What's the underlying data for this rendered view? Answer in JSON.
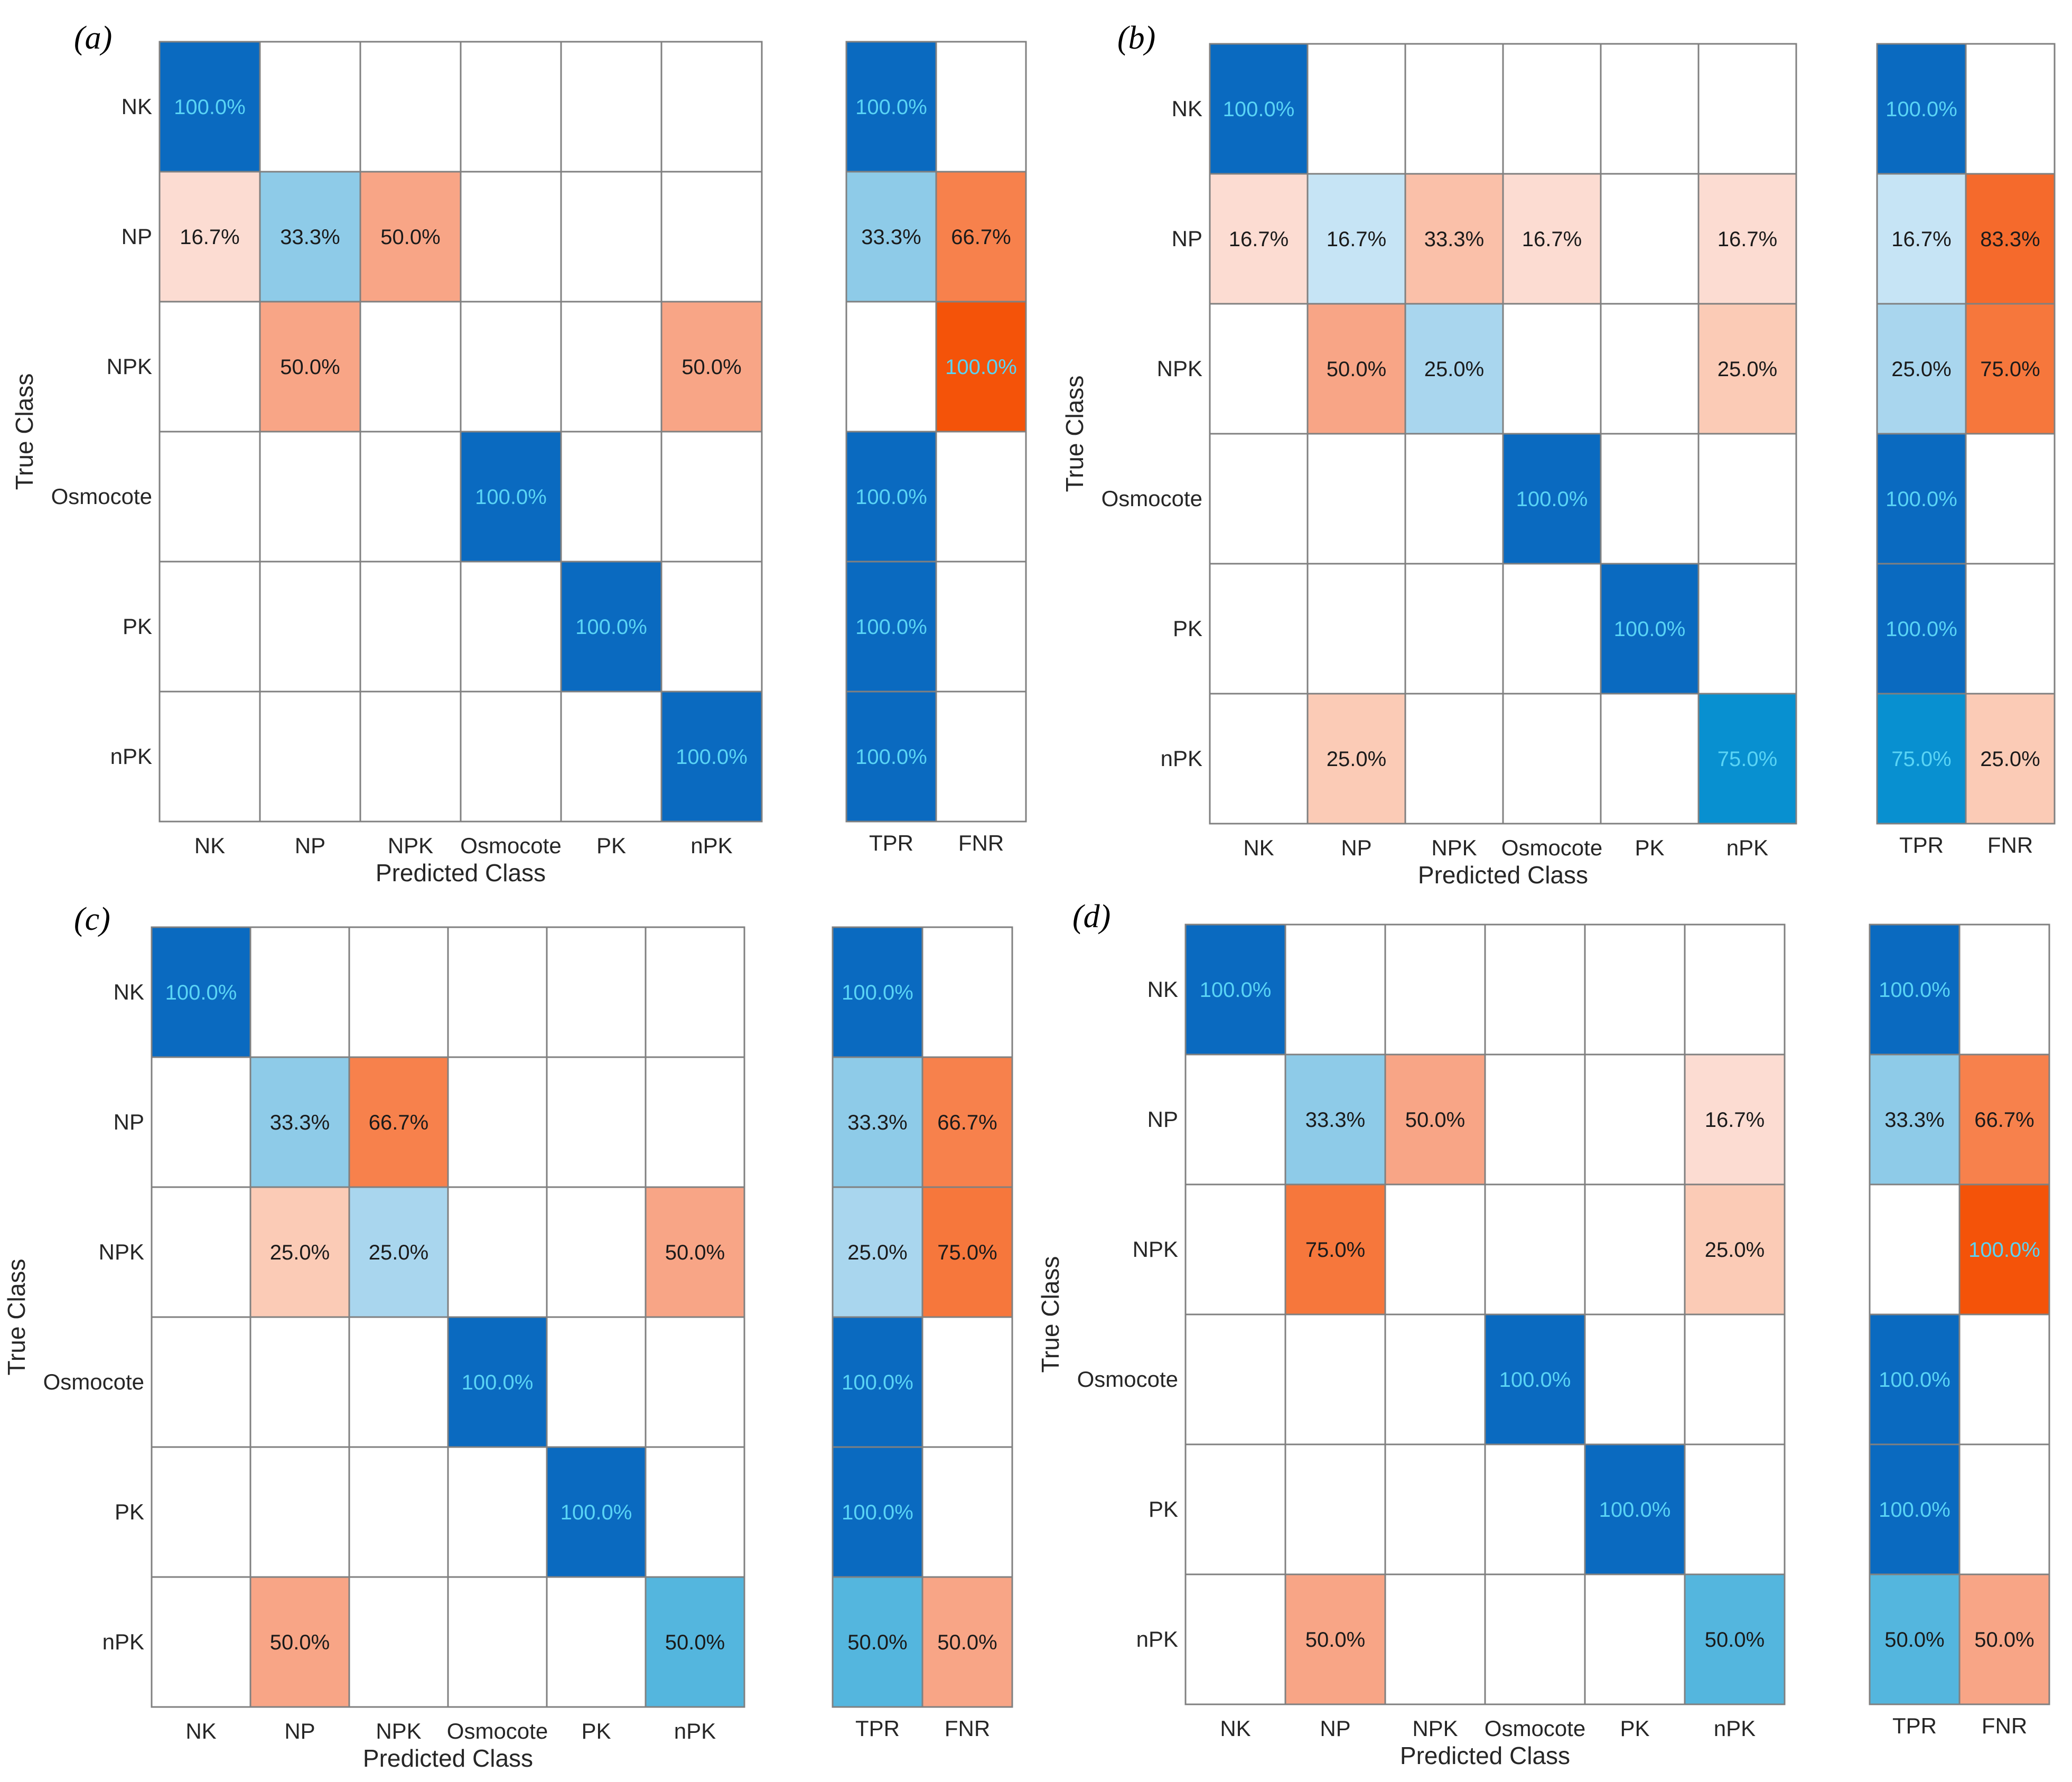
{
  "figure": {
    "panels_label_note": "Four confusion matrices with TPR/FNR summaries"
  },
  "chart_data": [
    {
      "type": "heatmap",
      "panel": "(a)",
      "ylabel": "True Class",
      "xlabel": "Predicted Class",
      "classes": [
        "NK",
        "NP",
        "NPK",
        "Osmocote",
        "PK",
        "nPK"
      ],
      "matrix": [
        [
          100.0,
          null,
          null,
          null,
          null,
          null
        ],
        [
          16.7,
          33.3,
          50.0,
          null,
          null,
          null
        ],
        [
          null,
          50.0,
          null,
          null,
          null,
          50.0
        ],
        [
          null,
          null,
          null,
          100.0,
          null,
          null
        ],
        [
          null,
          null,
          null,
          null,
          100.0,
          null
        ],
        [
          null,
          null,
          null,
          null,
          null,
          100.0
        ]
      ],
      "summary_labels": [
        "TPR",
        "FNR"
      ],
      "summary": [
        [
          100.0,
          null
        ],
        [
          33.3,
          66.7
        ],
        [
          null,
          100.0
        ],
        [
          100.0,
          null
        ],
        [
          100.0,
          null
        ],
        [
          100.0,
          null
        ]
      ]
    },
    {
      "type": "heatmap",
      "panel": "(b)",
      "ylabel": "True Class",
      "xlabel": "Predicted Class",
      "classes": [
        "NK",
        "NP",
        "NPK",
        "Osmocote",
        "PK",
        "nPK"
      ],
      "matrix": [
        [
          100.0,
          null,
          null,
          null,
          null,
          null
        ],
        [
          16.7,
          16.7,
          33.3,
          16.7,
          null,
          16.7
        ],
        [
          null,
          50.0,
          25.0,
          null,
          null,
          25.0
        ],
        [
          null,
          null,
          null,
          100.0,
          null,
          null
        ],
        [
          null,
          null,
          null,
          null,
          100.0,
          null
        ],
        [
          null,
          25.0,
          null,
          null,
          null,
          75.0
        ]
      ],
      "summary_labels": [
        "TPR",
        "FNR"
      ],
      "summary": [
        [
          100.0,
          null
        ],
        [
          16.7,
          83.3
        ],
        [
          25.0,
          75.0
        ],
        [
          100.0,
          null
        ],
        [
          100.0,
          null
        ],
        [
          75.0,
          25.0
        ]
      ]
    },
    {
      "type": "heatmap",
      "panel": "(c)",
      "ylabel": "True Class",
      "xlabel": "Predicted Class",
      "classes": [
        "NK",
        "NP",
        "NPK",
        "Osmocote",
        "PK",
        "nPK"
      ],
      "matrix": [
        [
          100.0,
          null,
          null,
          null,
          null,
          null
        ],
        [
          null,
          33.3,
          66.7,
          null,
          null,
          null
        ],
        [
          null,
          25.0,
          25.0,
          null,
          null,
          50.0
        ],
        [
          null,
          null,
          null,
          100.0,
          null,
          null
        ],
        [
          null,
          null,
          null,
          null,
          100.0,
          null
        ],
        [
          null,
          50.0,
          null,
          null,
          null,
          50.0
        ]
      ],
      "summary_labels": [
        "TPR",
        "FNR"
      ],
      "summary": [
        [
          100.0,
          null
        ],
        [
          33.3,
          66.7
        ],
        [
          25.0,
          75.0
        ],
        [
          100.0,
          null
        ],
        [
          100.0,
          null
        ],
        [
          50.0,
          50.0
        ]
      ]
    },
    {
      "type": "heatmap",
      "panel": "(d)",
      "ylabel": "True Class",
      "xlabel": "Predicted Class",
      "classes": [
        "NK",
        "NP",
        "NPK",
        "Osmocote",
        "PK",
        "nPK"
      ],
      "matrix": [
        [
          100.0,
          null,
          null,
          null,
          null,
          null
        ],
        [
          null,
          33.3,
          50.0,
          null,
          null,
          16.7
        ],
        [
          null,
          75.0,
          null,
          null,
          null,
          25.0
        ],
        [
          null,
          null,
          null,
          100.0,
          null,
          null
        ],
        [
          null,
          null,
          null,
          null,
          100.0,
          null
        ],
        [
          null,
          50.0,
          null,
          null,
          null,
          50.0
        ]
      ],
      "summary_labels": [
        "TPR",
        "FNR"
      ],
      "summary": [
        [
          100.0,
          null
        ],
        [
          33.3,
          66.7
        ],
        [
          null,
          100.0
        ],
        [
          100.0,
          null
        ],
        [
          100.0,
          null
        ],
        [
          50.0,
          50.0
        ]
      ]
    }
  ],
  "colors": {
    "blue_full": "#0a6ac0",
    "blue_75": "#0890d0",
    "blue_50": "#54b6de",
    "blue_33": "#8ecbe8",
    "blue_25": "#a9d6ee",
    "blue_16": "#c6e4f5",
    "orange_full": "#f45309",
    "orange_83": "#f56a2c",
    "orange_75": "#f6773c",
    "orange_67": "#f7814c",
    "orange_50": "#f8a586",
    "orange_33": "#fac0a9",
    "orange_25": "#fbcbb6",
    "orange_16": "#fcdcd2",
    "grid": "#808080",
    "light_text": "#5ad4f5",
    "dark_text": "#1a1a1a"
  }
}
